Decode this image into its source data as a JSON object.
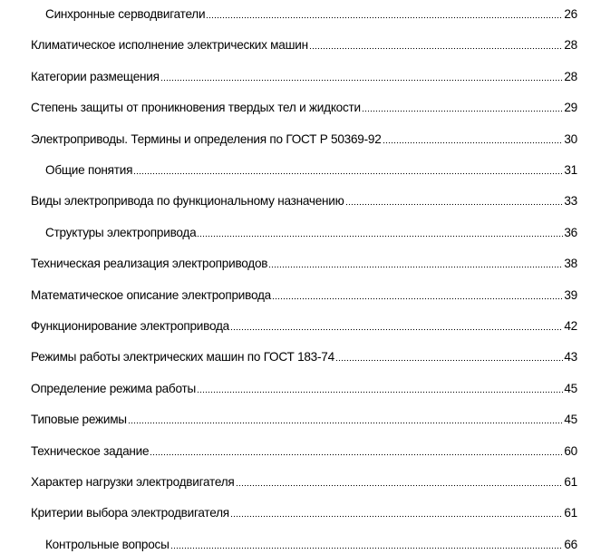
{
  "toc": {
    "entries": [
      {
        "title": "Синхронные серводвигатели",
        "page": "26",
        "level": 2
      },
      {
        "title": "Климатическое исполнение электрических машин",
        "page": "28",
        "level": 1
      },
      {
        "title": "Категории размещения",
        "page": "28",
        "level": 1
      },
      {
        "title": "Степень защиты от проникновения твердых тел и жидкости",
        "page": "29",
        "level": 1
      },
      {
        "title": "Электроприводы. Термины и определения по ГОСТ Р 50369-92",
        "page": "30",
        "level": 1
      },
      {
        "title": "Общие понятия",
        "page": "31",
        "level": 2
      },
      {
        "title": "Виды электропривода по функциональному назначению",
        "page": "33",
        "level": 1
      },
      {
        "title": "Структуры электропривода",
        "page": "36",
        "level": 2
      },
      {
        "title": "Техническая реализация электроприводов",
        "page": "38",
        "level": 1
      },
      {
        "title": "Математическое описание электропривода",
        "page": "39",
        "level": 1
      },
      {
        "title": "Функционирование электропривода",
        "page": "42",
        "level": 1
      },
      {
        "title": "Режимы работы электрических машин по ГОСТ 183-74",
        "page": "43",
        "level": 1
      },
      {
        "title": "Определение режима работы",
        "page": "45",
        "level": 1
      },
      {
        "title": "Типовые режимы",
        "page": "45",
        "level": 1
      },
      {
        "title": "Техническое задание",
        "page": "60",
        "level": 1
      },
      {
        "title": "Характер нагрузки электродвигателя",
        "page": "61",
        "level": 1
      },
      {
        "title": "Критерии выбора электродвигателя",
        "page": "61",
        "level": 1
      },
      {
        "title": "Контрольные вопросы",
        "page": "66",
        "level": 2
      }
    ]
  }
}
